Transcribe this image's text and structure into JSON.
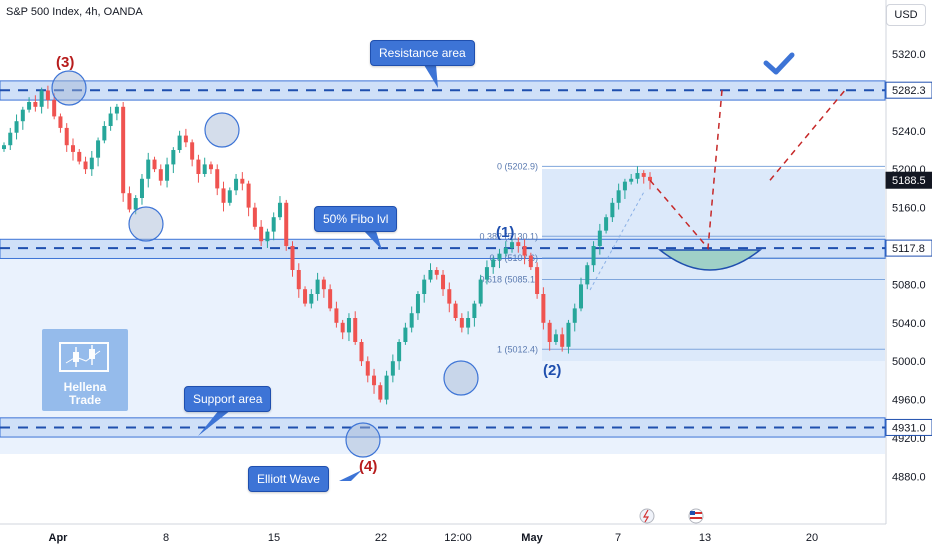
{
  "header": {
    "title": "S&P 500 Index, 4h, OANDA",
    "currency": "USD"
  },
  "annotations": {
    "resistance": "Resistance area",
    "fibo": "50% Fibo lvl",
    "support": "Support area",
    "elliott": "Elliott Wave",
    "wave3": "(3)",
    "wave4": "(4)",
    "wave1": "(1)",
    "wave2": "(2)"
  },
  "logo": {
    "line1": "Hellena",
    "line2": "Trade"
  },
  "fib": {
    "labels": [
      "0 (5202.9)",
      "0.382 (5130.1)",
      "0.5 (5107.6)",
      "0.618 (5085.1)",
      "1 (5012.4)"
    ],
    "values": [
      5202.9,
      5130.1,
      5107.6,
      5085.1,
      5012.4
    ]
  },
  "price_labels": [
    {
      "value": 5282.3,
      "text": "5282.3"
    },
    {
      "value": 5188.5,
      "text": "5188.5"
    },
    {
      "value": 5117.8,
      "text": "5117.8"
    },
    {
      "value": 4931.0,
      "text": "4931.0"
    }
  ],
  "chart_data": {
    "type": "candlestick",
    "title": "S&P 500 Index, 4h, OANDA",
    "ylim": [
      4845,
      5345
    ],
    "y_ticks": [
      5320,
      5280,
      5240,
      5200,
      5160,
      5120,
      5080,
      5040,
      5000,
      4960,
      4920,
      4880
    ],
    "x_ticks": [
      "Apr",
      "8",
      "15",
      "22",
      "12:00",
      "May",
      "7",
      "13",
      "20"
    ],
    "zones": {
      "resistance": [
        5272,
        5292
      ],
      "fibo_50": [
        5107,
        5127
      ],
      "support": [
        4921,
        4941
      ]
    },
    "key_levels": [
      5282.3,
      5117.8,
      4931.0
    ],
    "close_series": [
      5225,
      5238,
      5250,
      5262,
      5270,
      5265,
      5282,
      5272,
      5255,
      5243,
      5225,
      5218,
      5208,
      5200,
      5212,
      5230,
      5245,
      5258,
      5265,
      5175,
      5158,
      5170,
      5190,
      5210,
      5200,
      5188,
      5205,
      5220,
      5235,
      5228,
      5210,
      5195,
      5205,
      5200,
      5180,
      5165,
      5178,
      5190,
      5185,
      5160,
      5140,
      5125,
      5135,
      5150,
      5165,
      5120,
      5095,
      5075,
      5060,
      5070,
      5085,
      5075,
      5055,
      5040,
      5030,
      5045,
      5020,
      5000,
      4985,
      4975,
      4960,
      4985,
      5000,
      5020,
      5035,
      5050,
      5070,
      5085,
      5095,
      5090,
      5075,
      5060,
      5045,
      5035,
      5045,
      5060,
      5085,
      5098,
      5106,
      5112,
      5118,
      5124,
      5120,
      5110,
      5098,
      5070,
      5040,
      5020,
      5028,
      5015,
      5040,
      5055,
      5080,
      5100,
      5120,
      5136,
      5150,
      5165,
      5178,
      5187,
      5190,
      5196,
      5192,
      5188
    ],
    "projection": {
      "path_a": [
        5188.5,
        5117.8,
        5282.3
      ],
      "path_b": [
        5188.5,
        5282.3
      ]
    }
  }
}
